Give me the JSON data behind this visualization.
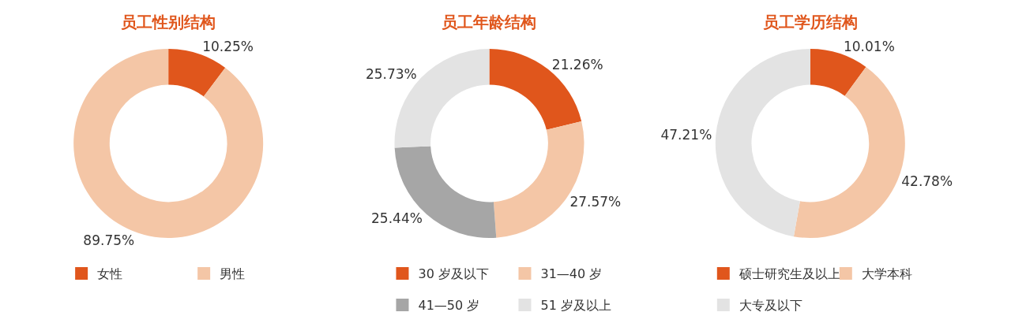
{
  "chart_data": [
    {
      "type": "donut",
      "title": "员工性别结构",
      "categories": [
        "女性",
        "男性"
      ],
      "values": [
        10.25,
        89.75
      ],
      "value_labels": [
        "10.25%",
        "89.75%"
      ],
      "colors": [
        "#e0561c",
        "#f4c6a6"
      ],
      "legend": "bottom"
    },
    {
      "type": "donut",
      "title": "员工年龄结构",
      "categories": [
        "30 岁及以下",
        "31—40 岁",
        "41—50 岁",
        "51 岁及以上"
      ],
      "values": [
        21.26,
        27.57,
        25.44,
        25.73
      ],
      "value_labels": [
        "21.26%",
        "27.57%",
        "25.44%",
        "25.73%"
      ],
      "colors": [
        "#e0561c",
        "#f4c6a6",
        "#a6a6a6",
        "#e3e3e3"
      ],
      "legend": "bottom"
    },
    {
      "type": "donut",
      "title": "员工学历结构",
      "categories": [
        "硕士研究生及以上",
        "大学本科",
        "大专及以下"
      ],
      "values": [
        10.01,
        42.78,
        47.21
      ],
      "value_labels": [
        "10.01%",
        "42.78%",
        "47.21%"
      ],
      "colors": [
        "#e0561c",
        "#f4c6a6",
        "#e3e3e3"
      ],
      "legend": "bottom"
    }
  ]
}
